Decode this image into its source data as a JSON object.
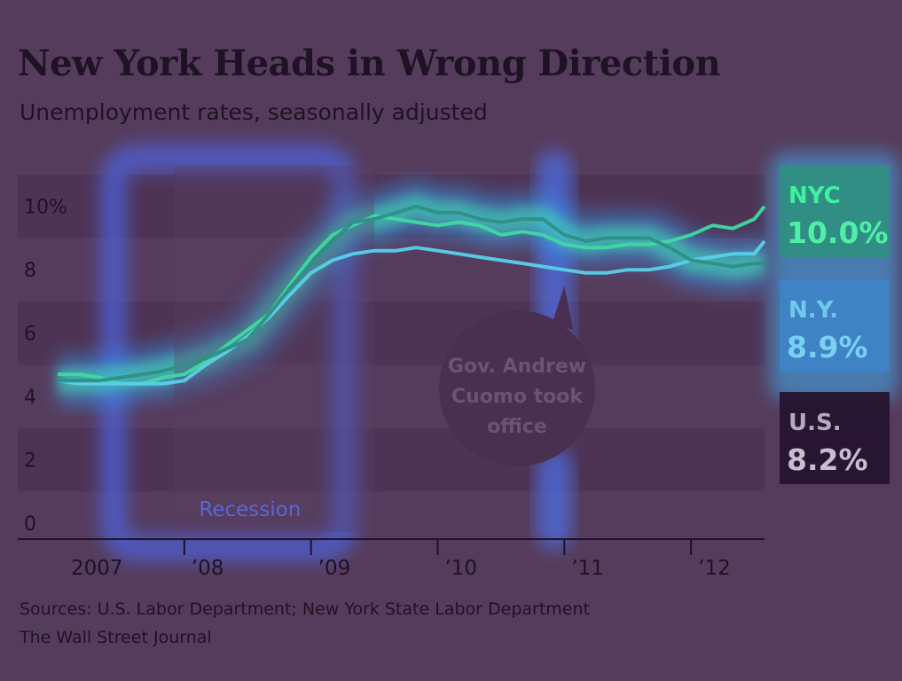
{
  "chart_data": {
    "type": "line",
    "title": "New York Heads in Wrong Direction",
    "subtitle": "Unemployment rates, seasonally adjusted",
    "ylim": [
      0,
      11
    ],
    "yticks": [
      {
        "value": 0,
        "label": "0"
      },
      {
        "value": 2,
        "label": "2"
      },
      {
        "value": 4,
        "label": "4"
      },
      {
        "value": 6,
        "label": "6"
      },
      {
        "value": 8,
        "label": "8"
      },
      {
        "value": 10,
        "label": "10%"
      }
    ],
    "xlim": [
      2007.0,
      2012.58
    ],
    "xticks": [
      {
        "value": 2008,
        "label": "’08"
      },
      {
        "value": 2009,
        "label": "’09"
      },
      {
        "value": 2010,
        "label": "’10"
      },
      {
        "value": 2011,
        "label": "’11"
      },
      {
        "value": 2012,
        "label": "’12"
      }
    ],
    "xstart_label": "2007",
    "grid": "horizontal bands",
    "legend": "right",
    "recession": {
      "start": 2007.92,
      "end": 2009.5,
      "label": "Recession"
    },
    "annotation": {
      "x": 2011.0,
      "lines": [
        "Gov. Andrew",
        "Cuomo took",
        "office"
      ]
    },
    "series": [
      {
        "name": "NYC",
        "last_label": "10.0%",
        "color": "#3fd9a0",
        "x": [
          2007.0,
          2007.17,
          2007.33,
          2007.5,
          2007.67,
          2007.83,
          2008.0,
          2008.17,
          2008.33,
          2008.5,
          2008.67,
          2008.83,
          2009.0,
          2009.17,
          2009.33,
          2009.5,
          2009.67,
          2009.83,
          2010.0,
          2010.17,
          2010.33,
          2010.5,
          2010.67,
          2010.83,
          2011.0,
          2011.17,
          2011.33,
          2011.5,
          2011.67,
          2011.83,
          2012.0,
          2012.17,
          2012.33,
          2012.5,
          2012.58
        ],
        "values": [
          4.7,
          4.7,
          4.6,
          4.4,
          4.4,
          4.6,
          4.7,
          5.1,
          5.6,
          6.1,
          6.6,
          7.5,
          8.4,
          9.1,
          9.4,
          9.7,
          9.6,
          9.5,
          9.4,
          9.5,
          9.4,
          9.1,
          9.2,
          9.1,
          8.8,
          8.7,
          8.7,
          8.8,
          8.8,
          8.9,
          9.1,
          9.4,
          9.3,
          9.6,
          10.0
        ]
      },
      {
        "name": "N.Y.",
        "last_label": "8.9%",
        "color": "#5ad0e8",
        "x": [
          2007.0,
          2007.17,
          2007.33,
          2007.5,
          2007.67,
          2007.83,
          2008.0,
          2008.17,
          2008.33,
          2008.5,
          2008.67,
          2008.83,
          2009.0,
          2009.17,
          2009.33,
          2009.5,
          2009.67,
          2009.83,
          2010.0,
          2010.17,
          2010.33,
          2010.5,
          2010.67,
          2010.83,
          2011.0,
          2011.17,
          2011.33,
          2011.5,
          2011.67,
          2011.83,
          2012.0,
          2012.17,
          2012.33,
          2012.5,
          2012.58
        ],
        "values": [
          4.5,
          4.4,
          4.4,
          4.4,
          4.4,
          4.4,
          4.5,
          5.0,
          5.4,
          5.9,
          6.5,
          7.2,
          7.9,
          8.3,
          8.5,
          8.6,
          8.6,
          8.7,
          8.6,
          8.5,
          8.4,
          8.3,
          8.2,
          8.1,
          8.0,
          7.9,
          7.9,
          8.0,
          8.0,
          8.1,
          8.3,
          8.4,
          8.5,
          8.5,
          8.9
        ]
      },
      {
        "name": "U.S.",
        "last_label": "8.2%",
        "color": "#2e8f86",
        "x": [
          2007.0,
          2007.17,
          2007.33,
          2007.5,
          2007.67,
          2007.83,
          2008.0,
          2008.17,
          2008.33,
          2008.5,
          2008.67,
          2008.83,
          2009.0,
          2009.17,
          2009.33,
          2009.5,
          2009.67,
          2009.83,
          2010.0,
          2010.17,
          2010.33,
          2010.5,
          2010.67,
          2010.83,
          2011.0,
          2011.17,
          2011.33,
          2011.5,
          2011.67,
          2011.83,
          2012.0,
          2012.17,
          2012.33,
          2012.5,
          2012.58
        ],
        "values": [
          4.5,
          4.5,
          4.5,
          4.6,
          4.7,
          4.8,
          5.0,
          5.2,
          5.5,
          5.8,
          6.6,
          7.4,
          8.2,
          8.9,
          9.5,
          9.6,
          9.8,
          10.0,
          9.8,
          9.8,
          9.6,
          9.5,
          9.6,
          9.6,
          9.1,
          8.9,
          9.0,
          9.0,
          9.0,
          8.7,
          8.3,
          8.2,
          8.1,
          8.2,
          8.2
        ]
      }
    ]
  },
  "footer": {
    "sources": "Sources: U.S. Labor Department; New York State Labor Department",
    "publisher": "The Wall Street Journal"
  }
}
